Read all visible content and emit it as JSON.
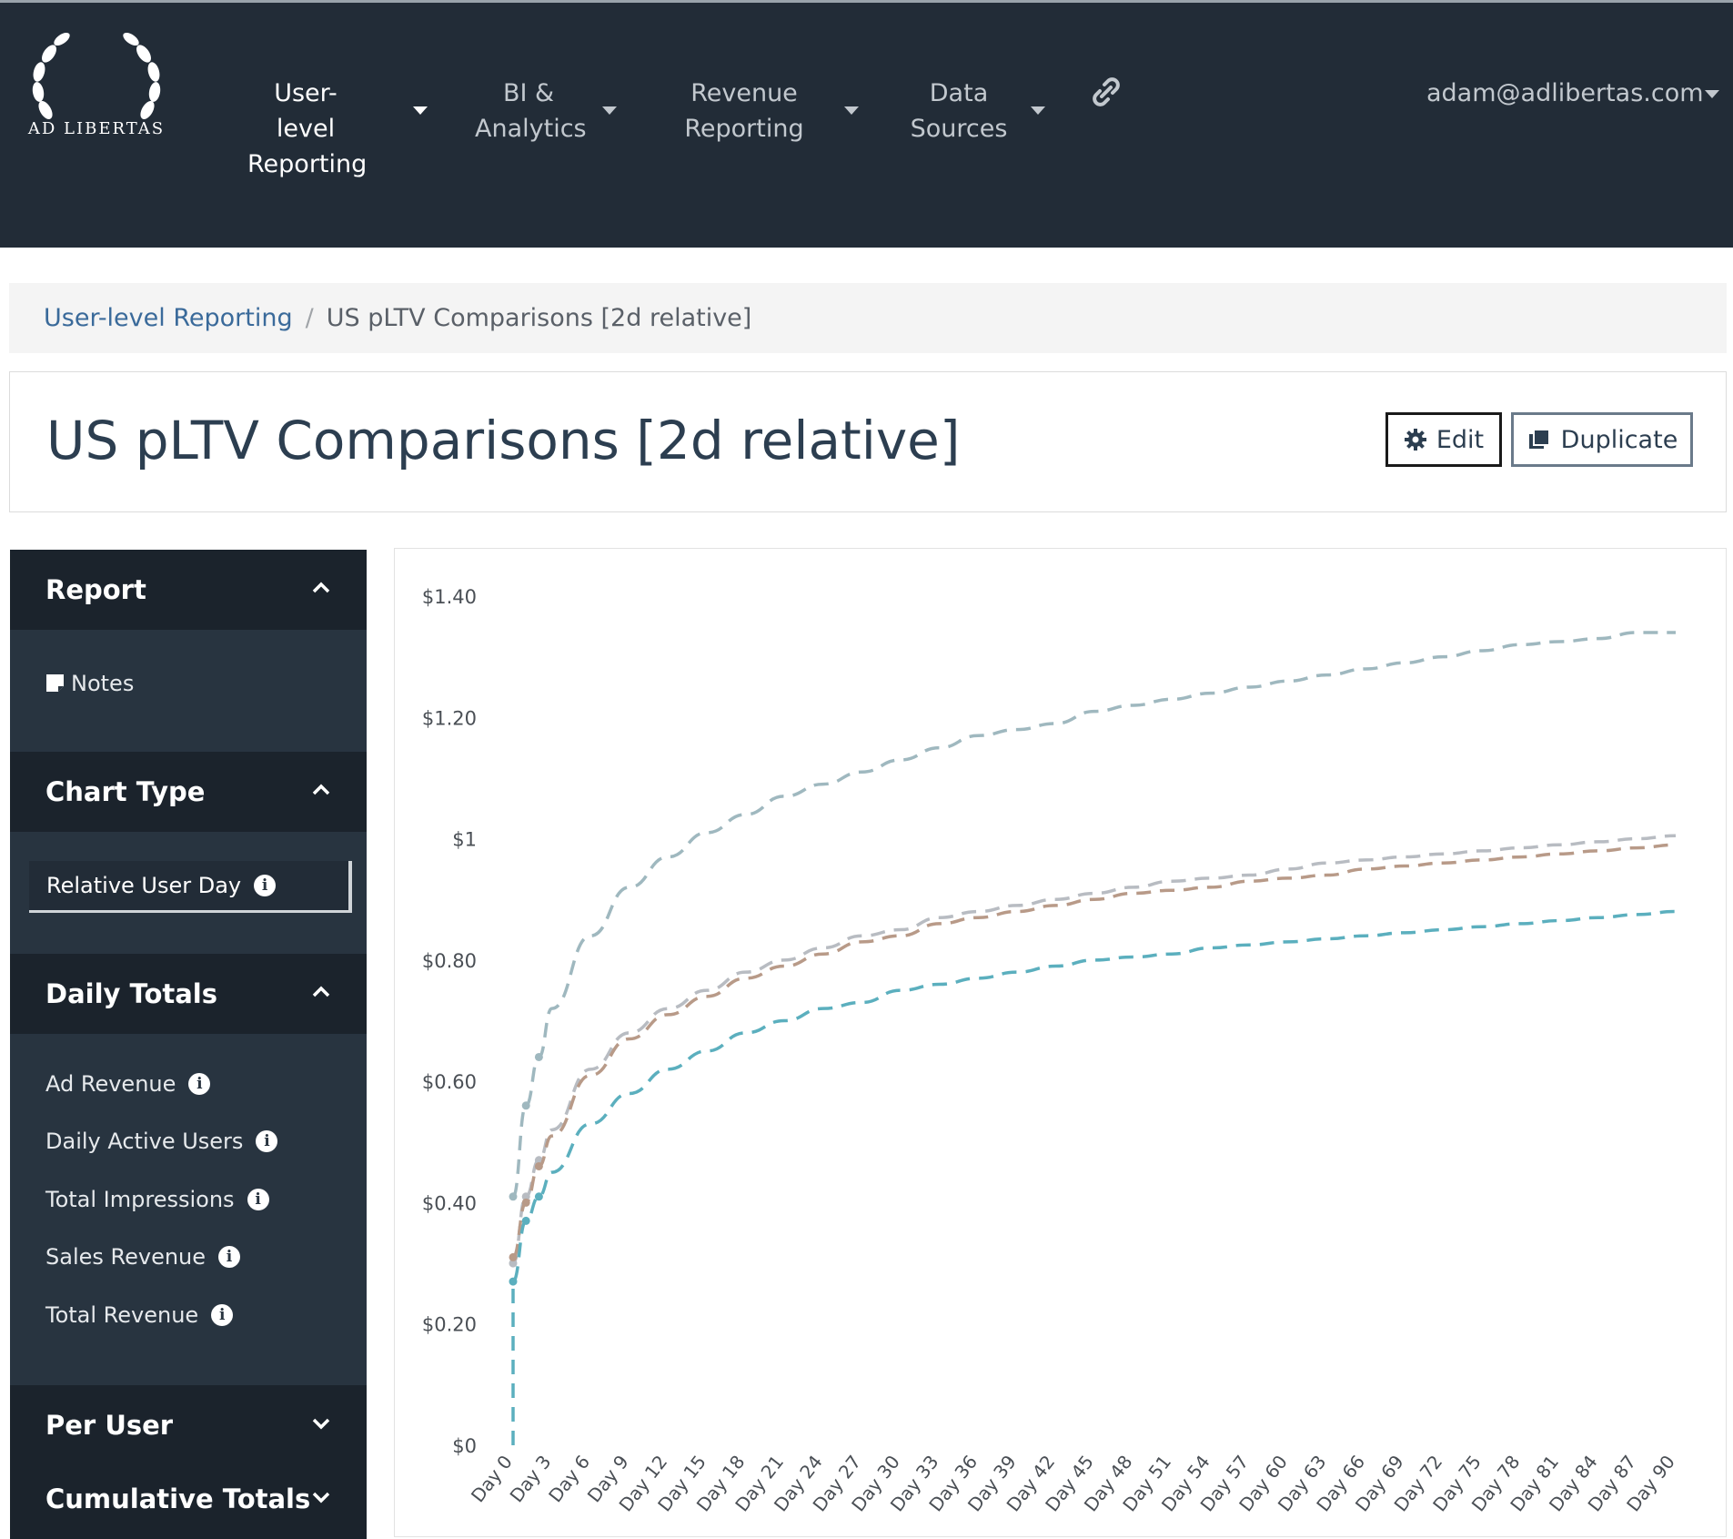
{
  "navbar": {
    "logo_text": "AD LIBERTAS",
    "items": [
      {
        "line1": "User-level",
        "line2": "Reporting",
        "active": true
      },
      {
        "line1": "BI &",
        "line2": "Analytics",
        "active": false
      },
      {
        "line1": "Revenue",
        "line2": "Reporting",
        "active": false
      },
      {
        "line1": "Data",
        "line2": "Sources",
        "active": false
      }
    ],
    "link_icon": "link-icon",
    "user_email": "adam@adlibertas.com"
  },
  "breadcrumb": {
    "parent": "User-level Reporting",
    "separator": "/",
    "current": "US pLTV Comparisons [2d relative]"
  },
  "page": {
    "title": "US pLTV Comparisons [2d relative]",
    "edit_label": "Edit",
    "duplicate_label": "Duplicate"
  },
  "sidebar": {
    "report": {
      "title": "Report",
      "items": [
        {
          "label": "Notes",
          "icon": "note-icon"
        }
      ]
    },
    "chart_type": {
      "title": "Chart Type",
      "selected": "Relative User Day"
    },
    "daily_totals": {
      "title": "Daily Totals",
      "items": [
        {
          "label": "Ad Revenue"
        },
        {
          "label": "Daily Active Users"
        },
        {
          "label": "Total Impressions"
        },
        {
          "label": "Sales Revenue"
        },
        {
          "label": "Total Revenue"
        }
      ]
    },
    "per_user": {
      "title": "Per User"
    },
    "cumulative_totals": {
      "title": "Cumulative Totals"
    }
  },
  "colors": {
    "navbar_bg": "#222c37",
    "sidebar_bg": "#283440",
    "series_1": "#9fb8bf",
    "series_2": "#b8bcc2",
    "series_3": "#b89a88",
    "series_4": "#5bafbe"
  },
  "chart_data": {
    "type": "line",
    "y_tick_labels": [
      "$0",
      "$0.20",
      "$0.40",
      "$0.60",
      "$0.80",
      "$1",
      "$1.20",
      "$1.40"
    ],
    "y_ticks": [
      0,
      0.2,
      0.4,
      0.6,
      0.8,
      1.0,
      1.2,
      1.4
    ],
    "ylim": [
      0,
      1.4
    ],
    "xlim": [
      0,
      90
    ],
    "x_tick_labels": [
      "Day 0",
      "Day 3",
      "Day 6",
      "Day 9",
      "Day 12",
      "Day 15",
      "Day 18",
      "Day 21",
      "Day 24",
      "Day 27",
      "Day 30",
      "Day 33",
      "Day 36",
      "Day 39",
      "Day 42",
      "Day 45",
      "Day 48",
      "Day 51",
      "Day 54",
      "Day 57",
      "Day 60",
      "Day 63",
      "Day 66",
      "Day 69",
      "Day 72",
      "Day 75",
      "Day 78",
      "Day 81",
      "Day 84",
      "Day 87",
      "Day 90"
    ],
    "x_ticks": [
      0,
      3,
      6,
      9,
      12,
      15,
      18,
      21,
      24,
      27,
      30,
      33,
      36,
      39,
      42,
      45,
      48,
      51,
      54,
      57,
      60,
      63,
      66,
      69,
      72,
      75,
      78,
      81,
      84,
      87,
      90
    ],
    "grid": false,
    "series": [
      {
        "x": [
          0,
          1,
          2,
          3,
          6,
          9,
          12,
          15,
          18,
          21,
          24,
          27,
          30,
          33,
          36,
          39,
          42,
          45,
          48,
          51,
          54,
          57,
          60,
          63,
          66,
          69,
          72,
          75,
          78,
          81,
          84,
          87,
          90
        ],
        "values": [
          0.41,
          0.56,
          0.64,
          0.72,
          0.84,
          0.92,
          0.97,
          1.01,
          1.04,
          1.07,
          1.09,
          1.11,
          1.13,
          1.15,
          1.17,
          1.18,
          1.19,
          1.21,
          1.22,
          1.23,
          1.24,
          1.25,
          1.26,
          1.27,
          1.28,
          1.29,
          1.3,
          1.31,
          1.32,
          1.325,
          1.33,
          1.34,
          1.34
        ],
        "style": "dashed",
        "color": "#9fb8bf"
      },
      {
        "x": [
          0,
          1,
          2,
          3,
          6,
          9,
          12,
          15,
          18,
          21,
          24,
          27,
          30,
          33,
          36,
          39,
          42,
          45,
          48,
          51,
          54,
          57,
          60,
          63,
          66,
          69,
          72,
          75,
          78,
          81,
          84,
          87,
          90
        ],
        "values": [
          0.3,
          0.41,
          0.47,
          0.52,
          0.62,
          0.68,
          0.72,
          0.75,
          0.78,
          0.8,
          0.82,
          0.84,
          0.85,
          0.87,
          0.88,
          0.89,
          0.9,
          0.91,
          0.92,
          0.93,
          0.935,
          0.94,
          0.95,
          0.96,
          0.965,
          0.97,
          0.975,
          0.98,
          0.985,
          0.99,
          0.995,
          1.0,
          1.005
        ],
        "style": "dashed",
        "color": "#b8bcc2"
      },
      {
        "x": [
          0,
          1,
          2,
          3,
          6,
          9,
          12,
          15,
          18,
          21,
          24,
          27,
          30,
          33,
          36,
          39,
          42,
          45,
          48,
          51,
          54,
          57,
          60,
          63,
          66,
          69,
          72,
          75,
          78,
          81,
          84,
          87,
          90
        ],
        "values": [
          0.31,
          0.4,
          0.46,
          0.51,
          0.61,
          0.67,
          0.71,
          0.74,
          0.77,
          0.79,
          0.81,
          0.83,
          0.84,
          0.86,
          0.87,
          0.88,
          0.89,
          0.9,
          0.91,
          0.915,
          0.92,
          0.93,
          0.935,
          0.94,
          0.95,
          0.955,
          0.96,
          0.965,
          0.97,
          0.975,
          0.98,
          0.985,
          0.99
        ],
        "style": "dashed",
        "color": "#b89a88"
      },
      {
        "x": [
          0,
          1,
          2,
          3,
          6,
          9,
          12,
          15,
          18,
          21,
          24,
          27,
          30,
          33,
          36,
          39,
          42,
          45,
          48,
          51,
          54,
          57,
          60,
          63,
          66,
          69,
          72,
          75,
          78,
          81,
          84,
          87,
          90
        ],
        "values": [
          0.27,
          0.37,
          0.41,
          0.45,
          0.53,
          0.58,
          0.62,
          0.65,
          0.68,
          0.7,
          0.72,
          0.73,
          0.75,
          0.76,
          0.77,
          0.78,
          0.79,
          0.8,
          0.805,
          0.81,
          0.82,
          0.825,
          0.83,
          0.835,
          0.84,
          0.845,
          0.85,
          0.855,
          0.86,
          0.865,
          0.87,
          0.875,
          0.88
        ],
        "style": "dashed",
        "color": "#5bafbe"
      }
    ]
  }
}
